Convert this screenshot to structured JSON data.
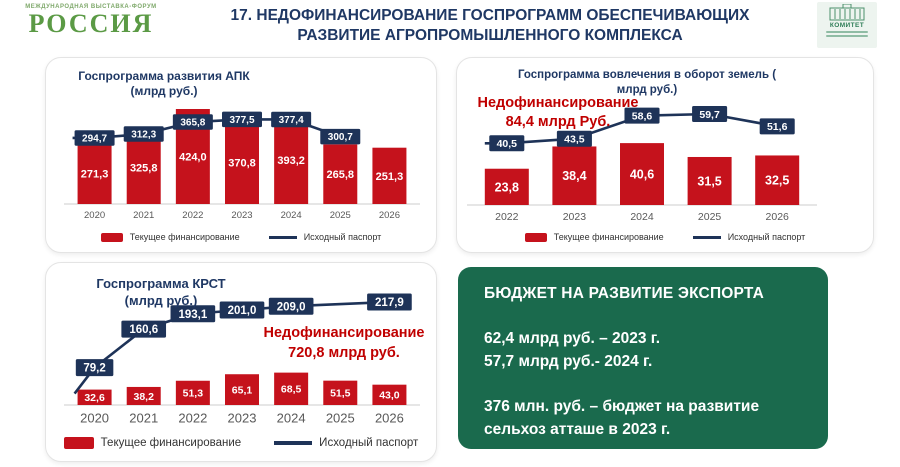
{
  "header": {
    "logo_left": {
      "line1": "МЕЖДУНАРОДНАЯ ВЫСТАВКА-ФОРУМ",
      "line2": "РОССИЯ"
    },
    "title_line1": "17. НЕДОФИНАНСИРОВАНИЕ ГОСПРОГРАММ ОБЕСПЕЧИВАЮЩИХ",
    "title_line2": "РАЗВИТИЕ АГРОПРОМЫШЛЕННОГО КОМПЛЕКСА",
    "logo_right": {
      "label": "КОМИТЕТ"
    }
  },
  "colors": {
    "bar_red": "#c5121c",
    "navy": "#1e3358",
    "title_navy": "#1f3864",
    "accent_red": "#c00000",
    "green_box": "#1a6a4d",
    "axis_gray": "#cccccc",
    "year_gray": "#595959"
  },
  "legend": {
    "bar_label": "Текущее финансирование",
    "line_label": "Исходный паспорт"
  },
  "chart_data": [
    {
      "id": "apk",
      "type": "bar",
      "title_line1": "Госпрограмма развития АПК",
      "title_line2": "(млрд руб.)",
      "categories": [
        "2020",
        "2021",
        "2022",
        "2023",
        "2024",
        "2025",
        "2026"
      ],
      "series": [
        {
          "name": "Текущее финансирование",
          "type": "bar",
          "values": [
            271.3,
            325.8,
            424.0,
            370.8,
            393.2,
            265.8,
            251.3
          ]
        },
        {
          "name": "Исходный паспорт",
          "type": "line",
          "values": [
            294.7,
            312.3,
            365.8,
            377.5,
            377.4,
            300.7,
            null
          ]
        }
      ],
      "legend_position": "bottom",
      "grid": false
    },
    {
      "id": "lands",
      "type": "bar",
      "title_line1": "Госпрограмма вовлечения в оборот земель (",
      "title_line2": "млрд руб.)",
      "annotation_line1": "Недофинансирование",
      "annotation_line2": "84,4  млрд Руб.",
      "categories": [
        "2022",
        "2023",
        "2024",
        "2025",
        "2026"
      ],
      "series": [
        {
          "name": "Текущее финансирование",
          "type": "bar",
          "values": [
            23.8,
            38.4,
            40.6,
            31.5,
            32.5
          ]
        },
        {
          "name": "Исходный паспорт",
          "type": "line",
          "values": [
            40.5,
            43.5,
            58.6,
            59.7,
            51.6
          ]
        }
      ],
      "legend_position": "bottom",
      "grid": false
    },
    {
      "id": "krst",
      "type": "bar",
      "title_line1": "Госпрограмма КРСТ",
      "title_line2": "(млрд руб.)",
      "annotation_line1": "Недофинансирование",
      "annotation_line2": "720,8 млрд руб.",
      "categories": [
        "2020",
        "2021",
        "2022",
        "2023",
        "2024",
        "2025",
        "2026"
      ],
      "series": [
        {
          "name": "Текущее финансирование",
          "type": "bar",
          "values": [
            32.6,
            38.2,
            51.3,
            65.1,
            68.5,
            51.5,
            43.0
          ]
        },
        {
          "name": "Исходный паспорт",
          "type": "line",
          "values": [
            79.2,
            160.6,
            193.1,
            201.0,
            209.0,
            null,
            217.9
          ]
        }
      ],
      "legend_position": "bottom",
      "grid": false
    }
  ],
  "export_box": {
    "title": "БЮДЖЕТ НА РАЗВИТИЕ ЭКСПОРТА",
    "line1": "62,4 млрд руб. – 2023 г.",
    "line2": "57,7 млрд руб.- 2024 г.",
    "line3": "376 млн. руб. – бюджет на развитие сельхоз атташе в 2023 г."
  }
}
